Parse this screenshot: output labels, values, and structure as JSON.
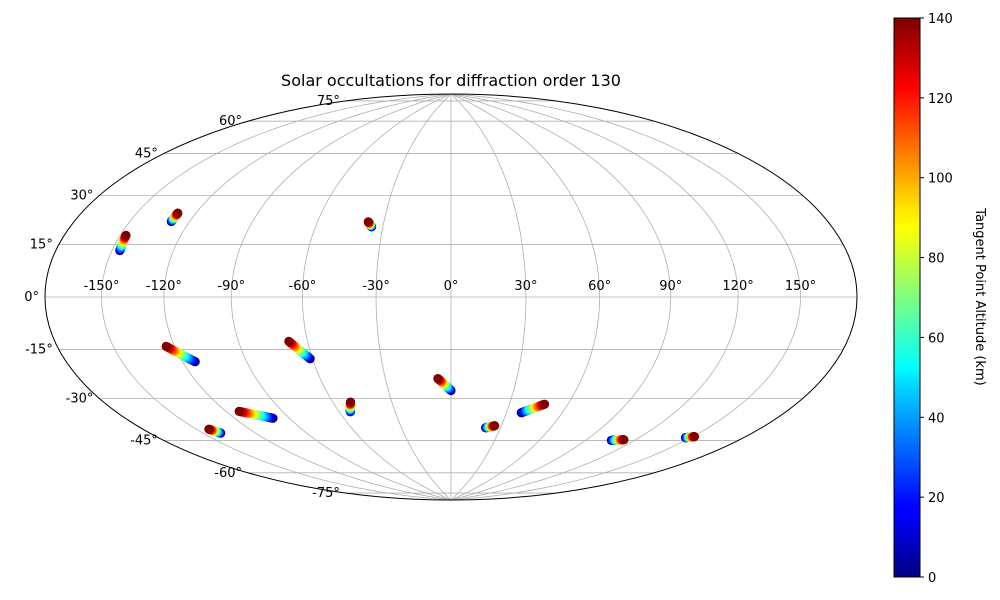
{
  "chart_data": {
    "type": "scatter",
    "projection": "hammer",
    "title": "Solar occultations for diffraction order 130",
    "grid": true,
    "lon_ticks": [
      -150,
      -120,
      -90,
      -60,
      -30,
      0,
      30,
      60,
      90,
      120,
      150
    ],
    "lon_tick_labels": [
      "-150°",
      "-120°",
      "-90°",
      "-60°",
      "-30°",
      "0°",
      "30°",
      "60°",
      "90°",
      "120°",
      "150°"
    ],
    "lat_ticks": [
      75,
      60,
      45,
      30,
      15,
      0,
      -15,
      -30,
      -45,
      -60,
      -75
    ],
    "lat_tick_labels": [
      "75°",
      "60°",
      "45°",
      "30°",
      "15°",
      "0°",
      "-15°",
      "-30°",
      "-45°",
      "-60°",
      "-75°"
    ],
    "colorbar": {
      "label": "Tangent Point Altitude (km)",
      "range": [
        0,
        140
      ],
      "ticks": [
        0,
        20,
        40,
        60,
        80,
        100,
        120,
        140
      ],
      "tick_labels": [
        "0",
        "20",
        "40",
        "60",
        "80",
        "100",
        "120",
        "140"
      ],
      "colormap": "jet"
    },
    "series": [
      {
        "lon_start": -146,
        "lat_start": 15,
        "lon_end": -147,
        "lat_end": 20
      },
      {
        "lon_start": -129,
        "lat_start": 26,
        "lon_end": -129,
        "lat_end": 29
      },
      {
        "lon_start": -35,
        "lat_start": 28,
        "lon_end": -37,
        "lat_end": 30
      },
      {
        "lon_start": -114,
        "lat_start": -23,
        "lon_end": -124,
        "lat_end": -17
      },
      {
        "lon_start": -61,
        "lat_start": -24,
        "lon_end": -68,
        "lat_end": -17
      },
      {
        "lon_start": 0,
        "lat_start": -38,
        "lon_end": -6,
        "lat_end": -33
      },
      {
        "lon_start": -140,
        "lat_start": -48,
        "lon_end": -143,
        "lat_end": -46
      },
      {
        "lon_start": -99,
        "lat_start": -46,
        "lon_end": -113,
        "lat_end": -42
      },
      {
        "lon_start": -54,
        "lat_start": -46,
        "lon_end": -51,
        "lat_end": -42
      },
      {
        "lon_start": 21,
        "lat_start": -54,
        "lon_end": 26,
        "lat_end": -53
      },
      {
        "lon_start": 38,
        "lat_start": -47,
        "lon_end": 48,
        "lat_end": -43
      },
      {
        "lon_start": 106,
        "lat_start": -55,
        "lon_end": 113,
        "lat_end": -54
      },
      {
        "lon_start": 147,
        "lat_start": -49,
        "lon_end": 151,
        "lat_end": -48
      }
    ]
  }
}
